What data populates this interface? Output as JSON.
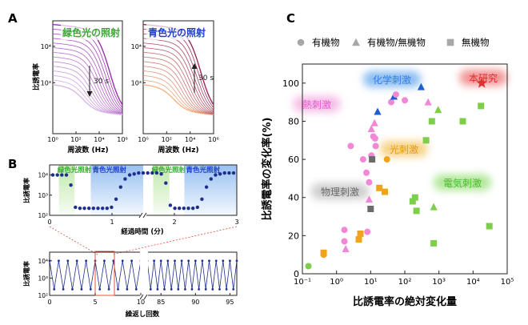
{
  "panels": {
    "a": "A",
    "b": "B",
    "c": "C"
  },
  "colors": {
    "green": "#7dcf4a",
    "blue": "#1a5fd6",
    "navy": "#1e2f8c",
    "orange": "#f0a31c",
    "pink": "#f287d6",
    "gray": "#6b6b6b",
    "red": "#e23030",
    "purple": "#8a2a9e"
  },
  "chart_data": [
    {
      "id": "A-left",
      "type": "line",
      "title": "緑色光の照射",
      "xlabel": "周波数 (Hz)",
      "ylabel": "比誘電率",
      "x_log_range": [
        0,
        6
      ],
      "y_log_range": [
        1.6,
        4.7
      ],
      "x_ticks": [
        "10⁰",
        "10²",
        "10⁴",
        "10⁶"
      ],
      "y_ticks": [
        "10³",
        "10⁴"
      ],
      "time_annotation": "30 s",
      "arrow_direction": "down",
      "series": {
        "curve_count": 14,
        "low_freq_plateau_log_first": 4.6,
        "low_freq_plateau_log_last": 2.95,
        "high_freq_plateau_log": 2.3,
        "relaxation_center_log_f_first": 4.9,
        "relaxation_center_log_f_last": 2.6
      }
    },
    {
      "id": "A-right",
      "type": "line",
      "title": "青色光の照射",
      "xlabel": "周波数 (Hz)",
      "ylabel": "",
      "x_log_range": [
        0,
        6
      ],
      "y_log_range": [
        1.6,
        4.7
      ],
      "x_ticks": [
        "10⁰",
        "10²",
        "10⁴",
        "10⁶"
      ],
      "y_ticks": [
        "10³",
        "10⁴"
      ],
      "time_annotation": "30 s",
      "arrow_direction": "up",
      "series": {
        "curve_count": 14,
        "low_freq_plateau_log_first": 2.95,
        "low_freq_plateau_log_last": 4.6,
        "high_freq_plateau_log": 2.3,
        "relaxation_center_log_f_first": 2.6,
        "relaxation_center_log_f_last": 4.9
      }
    },
    {
      "id": "B-top",
      "type": "scatter",
      "xlabel": "経過時間 (分)",
      "ylabel": "比誘電率",
      "x_range": [
        0,
        3
      ],
      "y_log_range": [
        2,
        4.5
      ],
      "x_ticks": [
        "0",
        "1",
        "2",
        "3"
      ],
      "y_ticks": [
        "10²",
        "10³",
        "10⁴"
      ],
      "regions": [
        {
          "label": "緑色光照射",
          "start": 0.15,
          "end": 0.4,
          "kind": "green"
        },
        {
          "label": "青色光照射",
          "start": 0.66,
          "end": 1.5,
          "kind": "blue"
        },
        {
          "label": "緑色光照射",
          "start": 1.66,
          "end": 1.92,
          "kind": "green"
        },
        {
          "label": "青色光照射",
          "start": 2.16,
          "end": 3.0,
          "kind": "blue"
        }
      ],
      "points_log10": [
        4.0,
        4.0,
        4.0,
        4.0,
        3.5,
        2.4,
        2.35,
        2.35,
        2.35,
        2.35,
        2.35,
        2.35,
        2.35,
        2.4,
        2.8,
        3.4,
        3.8,
        4.0,
        4.05,
        4.1,
        4.1,
        4.1,
        4.1,
        4.1,
        4.05,
        3.6,
        2.5,
        2.35,
        2.35,
        2.35,
        2.35,
        2.35,
        2.4,
        2.8,
        3.4,
        3.8,
        4.0,
        4.05,
        4.1,
        4.1,
        4.1
      ]
    },
    {
      "id": "B-bottom",
      "type": "line",
      "xlabel": "繰返し回数",
      "ylabel": "比誘電率",
      "segments": [
        {
          "x_range": [
            0,
            10
          ]
        },
        {
          "x_range": [
            83,
            96
          ]
        }
      ],
      "y_log_range": [
        2,
        4.5
      ],
      "x_ticks": [
        "0",
        "5",
        "10",
        "85",
        "90",
        "95"
      ],
      "y_ticks": [
        "10²",
        "10³",
        "10⁴"
      ],
      "high_log10": 4.0,
      "low_log10": 2.35,
      "half_cycles_per_unit": 2
    },
    {
      "id": "C",
      "type": "scatter",
      "xlabel": "比誘電率の絶対変化量",
      "ylabel": "比誘電率の変化率(%)",
      "x_log_range": [
        -1,
        5
      ],
      "y_range": [
        0,
        110
      ],
      "x_ticks": [
        "10⁻¹",
        "10⁰",
        "10¹",
        "10²",
        "10³",
        "10⁴",
        "10⁵"
      ],
      "y_ticks": [
        "0",
        "20",
        "40",
        "60",
        "80",
        "100"
      ],
      "legend": [
        {
          "label": "有機物",
          "marker": "circle"
        },
        {
          "label": "有機物/無機物",
          "marker": "triangle"
        },
        {
          "label": "無機物",
          "marker": "square"
        }
      ],
      "categories": [
        {
          "label": "化学刺激",
          "color": "blue"
        },
        {
          "label": "本研究",
          "color": "red"
        },
        {
          "label": "熱刺激",
          "color": "pink"
        },
        {
          "label": "光刺激",
          "color": "orange"
        },
        {
          "label": "物理刺激",
          "color": "gray"
        },
        {
          "label": "電気刺激",
          "color": "green"
        }
      ],
      "points": [
        {
          "x": 0.15,
          "y": 4,
          "m": "circle",
          "c": "green"
        },
        {
          "x": 0.42,
          "y": 10,
          "m": "circle",
          "c": "orange"
        },
        {
          "x": 0.42,
          "y": 11,
          "m": "square",
          "c": "orange"
        },
        {
          "x": 1.7,
          "y": 17,
          "m": "circle",
          "c": "pink"
        },
        {
          "x": 1.85,
          "y": 13,
          "m": "triangle",
          "c": "pink"
        },
        {
          "x": 1.7,
          "y": 23,
          "m": "circle",
          "c": "pink"
        },
        {
          "x": 2.6,
          "y": 67,
          "m": "circle",
          "c": "pink"
        },
        {
          "x": 4.5,
          "y": 18,
          "m": "square",
          "c": "orange"
        },
        {
          "x": 5.0,
          "y": 21,
          "m": "square",
          "c": "orange"
        },
        {
          "x": 6.0,
          "y": 60,
          "m": "circle",
          "c": "pink"
        },
        {
          "x": 7.5,
          "y": 53,
          "m": "circle",
          "c": "pink"
        },
        {
          "x": 8.0,
          "y": 22,
          "m": "circle",
          "c": "pink"
        },
        {
          "x": 9.0,
          "y": 39,
          "m": "triangle",
          "c": "pink"
        },
        {
          "x": 9.0,
          "y": 48,
          "m": "circle",
          "c": "pink"
        },
        {
          "x": 10.0,
          "y": 34,
          "m": "square",
          "c": "gray"
        },
        {
          "x": 10.5,
          "y": 62,
          "m": "circle",
          "c": "pink"
        },
        {
          "x": 10.5,
          "y": 76,
          "m": "triangle",
          "c": "pink"
        },
        {
          "x": 11.0,
          "y": 60,
          "m": "square",
          "c": "gray"
        },
        {
          "x": 12.0,
          "y": 72,
          "m": "circle",
          "c": "pink"
        },
        {
          "x": 13.0,
          "y": 79,
          "m": "triangle",
          "c": "pink"
        },
        {
          "x": 13.5,
          "y": 71,
          "m": "circle",
          "c": "pink"
        },
        {
          "x": 14.0,
          "y": 67,
          "m": "circle",
          "c": "pink"
        },
        {
          "x": 16.0,
          "y": 85,
          "m": "triangle",
          "c": "blue"
        },
        {
          "x": 18.0,
          "y": 45,
          "m": "square",
          "c": "orange"
        },
        {
          "x": 26.0,
          "y": 43,
          "m": "square",
          "c": "orange"
        },
        {
          "x": 30.0,
          "y": 60,
          "m": "circle",
          "c": "orange"
        },
        {
          "x": 40.0,
          "y": 90,
          "m": "circle",
          "c": "pink"
        },
        {
          "x": 48.0,
          "y": 93,
          "m": "triangle",
          "c": "blue"
        },
        {
          "x": 55.0,
          "y": 94,
          "m": "circle",
          "c": "pink"
        },
        {
          "x": 100.0,
          "y": 91,
          "m": "circle",
          "c": "pink"
        },
        {
          "x": 170.0,
          "y": 38,
          "m": "square",
          "c": "green"
        },
        {
          "x": 200.0,
          "y": 40,
          "m": "square",
          "c": "green"
        },
        {
          "x": 220.0,
          "y": 33,
          "m": "square",
          "c": "green"
        },
        {
          "x": 300.0,
          "y": 98,
          "m": "triangle",
          "c": "blue"
        },
        {
          "x": 420.0,
          "y": 70,
          "m": "square",
          "c": "green"
        },
        {
          "x": 480.0,
          "y": 90,
          "m": "triangle",
          "c": "pink"
        },
        {
          "x": 620.0,
          "y": 80,
          "m": "square",
          "c": "green"
        },
        {
          "x": 700.0,
          "y": 35,
          "m": "triangle",
          "c": "green"
        },
        {
          "x": 700.0,
          "y": 16,
          "m": "square",
          "c": "green"
        },
        {
          "x": 950.0,
          "y": 86,
          "m": "triangle",
          "c": "green"
        },
        {
          "x": 5000.0,
          "y": 80,
          "m": "square",
          "c": "green"
        },
        {
          "x": 17000.0,
          "y": 88,
          "m": "square",
          "c": "green"
        },
        {
          "x": 30000.0,
          "y": 25,
          "m": "square",
          "c": "green"
        },
        {
          "x": 18000.0,
          "y": 100,
          "m": "star",
          "c": "red"
        }
      ]
    }
  ]
}
